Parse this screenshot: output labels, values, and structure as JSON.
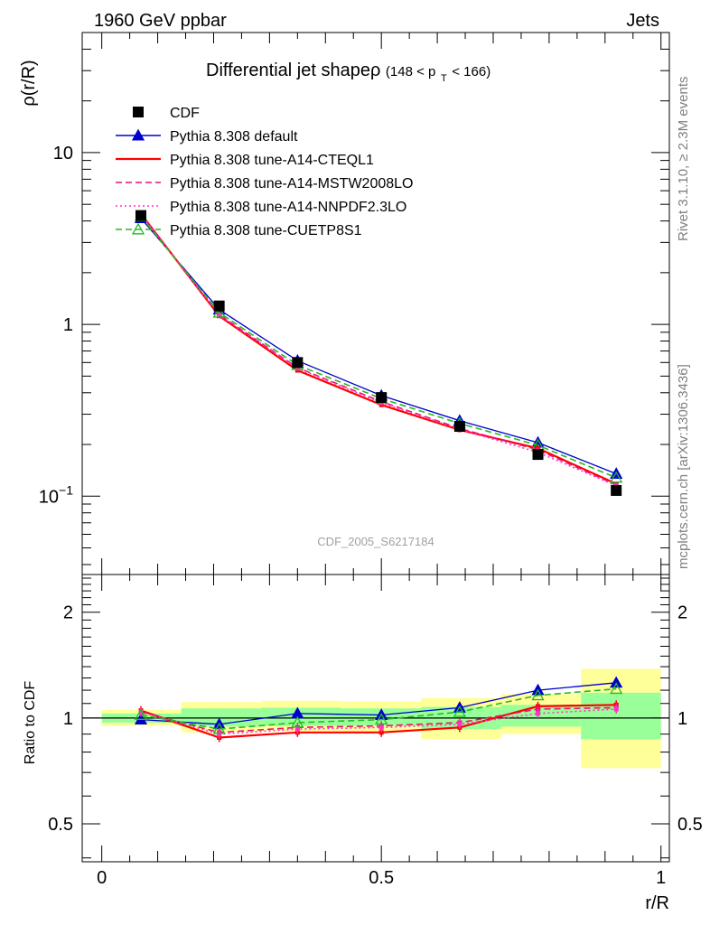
{
  "header": {
    "left": "1960 GeV ppbar",
    "right": "Jets"
  },
  "side_labels": {
    "rivet": "Rivet 3.1.10, ≥ 2.3M events",
    "mcplots": "mcplots.cern.ch [arXiv:1306.3436]"
  },
  "colors": {
    "cdf": "#000000",
    "default": "#0000cc",
    "cteql1": "#ff0000",
    "mstw": "#ee1177",
    "nnpdf": "#ff33cc",
    "cuetp8s1": "#22bb22",
    "band_yellow": "#ffff99",
    "band_green": "#99ff99"
  },
  "chart_data": [
    {
      "type": "line",
      "panel": "main",
      "title": "Differential jet shapeρ",
      "title_range": "(148 < p",
      "title_sub": "T",
      "title_end": " < 166)",
      "ylabel": "ρ(r/R)",
      "yscale": "log",
      "ylim": [
        0.035,
        50
      ],
      "xlim": [
        -0.035,
        1.015
      ],
      "y_ticks": [
        {
          "value": 10,
          "label": "10"
        },
        {
          "value": 1,
          "label": "1"
        },
        {
          "value": 0.1,
          "label": "10",
          "sup": "−1"
        }
      ],
      "watermark": "CDF_2005_S6217184",
      "legend_position": "top-left",
      "data": {
        "name": "CDF",
        "x": [
          0.07,
          0.21,
          0.35,
          0.5,
          0.64,
          0.78,
          0.92
        ],
        "y": [
          4.3,
          1.28,
          0.6,
          0.375,
          0.255,
          0.175,
          0.108
        ]
      },
      "series": [
        {
          "name": "Pythia 8.308 default",
          "key": "default",
          "style": "solid",
          "marker": "triangle-filled",
          "x": [
            0.07,
            0.21,
            0.35,
            0.5,
            0.64,
            0.78,
            0.92
          ],
          "y": [
            4.15,
            1.22,
            0.615,
            0.385,
            0.275,
            0.205,
            0.135
          ]
        },
        {
          "name": "Pythia 8.308 tune-A14-CTEQL1",
          "key": "cteql1",
          "style": "solid",
          "marker": "square-small",
          "x": [
            0.07,
            0.21,
            0.35,
            0.5,
            0.64,
            0.78,
            0.92
          ],
          "y": [
            4.4,
            1.12,
            0.54,
            0.34,
            0.243,
            0.19,
            0.118
          ]
        },
        {
          "name": "Pythia 8.308 tune-A14-MSTW2008LO",
          "key": "mstw",
          "style": "dashed",
          "marker": "square-small",
          "x": [
            0.07,
            0.21,
            0.35,
            0.5,
            0.64,
            0.78,
            0.92
          ],
          "y": [
            4.35,
            1.14,
            0.56,
            0.355,
            0.248,
            0.186,
            0.116
          ]
        },
        {
          "name": "Pythia 8.308 tune-A14-NNPDF2.3LO",
          "key": "nnpdf",
          "style": "dotted",
          "marker": "square-small",
          "x": [
            0.07,
            0.21,
            0.35,
            0.5,
            0.64,
            0.78,
            0.92
          ],
          "y": [
            4.35,
            1.13,
            0.555,
            0.35,
            0.245,
            0.18,
            0.115
          ]
        },
        {
          "name": "Pythia 8.308 tune-CUETP8S1",
          "key": "cuetp8s1",
          "style": "dashed",
          "marker": "triangle-open",
          "x": [
            0.07,
            0.21,
            0.35,
            0.5,
            0.64,
            0.78,
            0.92
          ],
          "y": [
            4.25,
            1.17,
            0.58,
            0.37,
            0.265,
            0.198,
            0.128
          ]
        }
      ]
    },
    {
      "type": "line",
      "panel": "ratio",
      "ylabel": "Ratio to CDF",
      "xlabel": "r/R",
      "yscale": "log",
      "ylim": [
        0.39,
        2.56
      ],
      "xlim": [
        -0.035,
        1.015
      ],
      "y_ticks": [
        {
          "value": 2,
          "label": "2"
        },
        {
          "value": 1,
          "label": "1"
        },
        {
          "value": 0.5,
          "label": "0.5"
        }
      ],
      "x_ticks": [
        {
          "value": 0,
          "label": "0"
        },
        {
          "value": 0.5,
          "label": "0.5"
        },
        {
          "value": 1,
          "label": "1"
        }
      ],
      "bands": [
        {
          "x0": 0.0,
          "x1": 0.142,
          "yellow": [
            0.95,
            1.055
          ],
          "green": [
            0.97,
            1.03
          ]
        },
        {
          "x0": 0.142,
          "x1": 0.285,
          "yellow": [
            0.91,
            1.11
          ],
          "green": [
            0.945,
            1.065
          ]
        },
        {
          "x0": 0.285,
          "x1": 0.428,
          "yellow": [
            0.92,
            1.12
          ],
          "green": [
            0.95,
            1.07
          ]
        },
        {
          "x0": 0.428,
          "x1": 0.571,
          "yellow": [
            0.915,
            1.115
          ],
          "green": [
            0.95,
            1.065
          ]
        },
        {
          "x0": 0.571,
          "x1": 0.714,
          "yellow": [
            0.87,
            1.14
          ],
          "green": [
            0.93,
            1.075
          ]
        },
        {
          "x0": 0.714,
          "x1": 0.857,
          "yellow": [
            0.9,
            1.17
          ],
          "green": [
            0.945,
            1.09
          ]
        },
        {
          "x0": 0.857,
          "x1": 1.0,
          "yellow": [
            0.72,
            1.38
          ],
          "green": [
            0.87,
            1.18
          ]
        }
      ],
      "series": [
        {
          "key": "default",
          "style": "solid",
          "marker": "triangle-filled",
          "x": [
            0.07,
            0.21,
            0.35,
            0.5,
            0.64,
            0.78,
            0.92
          ],
          "y": [
            0.99,
            0.96,
            1.03,
            1.02,
            1.07,
            1.2,
            1.26
          ]
        },
        {
          "key": "cteql1",
          "style": "solid",
          "marker": "square-small",
          "x": [
            0.07,
            0.21,
            0.35,
            0.5,
            0.64,
            0.78,
            0.92
          ],
          "y": [
            1.05,
            0.88,
            0.91,
            0.91,
            0.94,
            1.08,
            1.09
          ]
        },
        {
          "key": "mstw",
          "style": "dashed",
          "marker": "square-small",
          "x": [
            0.07,
            0.21,
            0.35,
            0.5,
            0.64,
            0.78,
            0.92
          ],
          "y": [
            1.04,
            0.91,
            0.94,
            0.95,
            0.97,
            1.06,
            1.07
          ]
        },
        {
          "key": "nnpdf",
          "style": "dotted",
          "marker": "square-small",
          "x": [
            0.07,
            0.21,
            0.35,
            0.5,
            0.64,
            0.78,
            0.92
          ],
          "y": [
            1.04,
            0.9,
            0.93,
            0.94,
            0.96,
            1.03,
            1.06
          ]
        },
        {
          "key": "cuetp8s1",
          "style": "dashed",
          "marker": "triangle-open",
          "x": [
            0.07,
            0.21,
            0.35,
            0.5,
            0.64,
            0.78,
            0.92
          ],
          "y": [
            1.02,
            0.93,
            0.97,
            0.99,
            1.04,
            1.16,
            1.21
          ]
        }
      ]
    }
  ]
}
